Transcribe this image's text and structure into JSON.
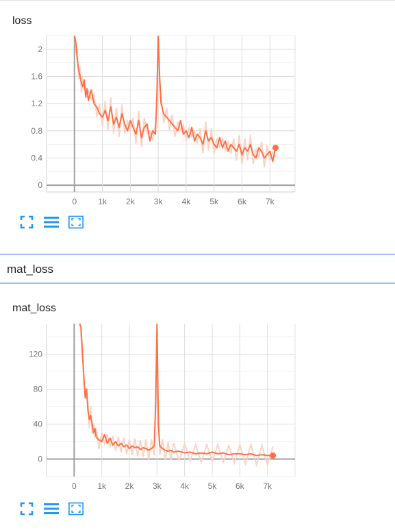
{
  "charts": [
    {
      "title": "loss",
      "x_ticks": [
        "0",
        "1k",
        "2k",
        "3k",
        "4k",
        "5k",
        "6k",
        "7k"
      ],
      "y_ticks": [
        "0",
        "0.4",
        "0.8",
        "1.2",
        "1.6",
        "2"
      ],
      "accent_color": "#ff7043",
      "raw_color": "#fbd3c4",
      "chart_data": {
        "type": "line",
        "title": "loss",
        "xlabel": "",
        "ylabel": "",
        "xlim": [
          -1000,
          7900
        ],
        "ylim": [
          -0.1,
          2.2
        ],
        "grid": true,
        "legend": "none",
        "series": [
          {
            "x": [
              0,
              50,
              100,
              150,
              200,
              250,
              300,
              350,
              400,
              450,
              500,
              600,
              700,
              800,
              900,
              1000,
              1100,
              1200,
              1300,
              1400,
              1500,
              1600,
              1700,
              1800,
              1900,
              2000,
              2100,
              2200,
              2300,
              2400,
              2500,
              2600,
              2700,
              2800,
              2900,
              2950,
              3000,
              3050,
              3100,
              3200,
              3300,
              3400,
              3500,
              3600,
              3700,
              3800,
              3900,
              4000,
              4100,
              4200,
              4300,
              4400,
              4500,
              4600,
              4700,
              4800,
              4900,
              5000,
              5100,
              5200,
              5300,
              5400,
              5500,
              5600,
              5700,
              5800,
              5900,
              6000,
              6100,
              6200,
              6300,
              6400,
              6500,
              6600,
              6700,
              6800,
              6900,
              7000,
              7100,
              7200
            ],
            "y": [
              2.2,
              2.1,
              1.85,
              1.7,
              1.6,
              1.5,
              1.45,
              1.55,
              1.3,
              1.42,
              1.25,
              1.4,
              1.2,
              1.15,
              1.05,
              1.0,
              1.1,
              0.95,
              1.15,
              0.9,
              1.0,
              0.85,
              1.05,
              0.9,
              0.8,
              0.95,
              0.85,
              0.75,
              0.95,
              0.7,
              0.85,
              0.9,
              0.65,
              0.8,
              0.75,
              1.3,
              2.2,
              1.6,
              1.2,
              1.05,
              1.0,
              0.95,
              0.9,
              0.85,
              0.8,
              0.95,
              0.75,
              0.8,
              0.7,
              0.85,
              0.65,
              0.75,
              0.7,
              0.6,
              0.8,
              0.65,
              0.7,
              0.6,
              0.55,
              0.7,
              0.55,
              0.65,
              0.5,
              0.6,
              0.55,
              0.5,
              0.6,
              0.45,
              0.55,
              0.5,
              0.6,
              0.45,
              0.4,
              0.55,
              0.5,
              0.4,
              0.45,
              0.5,
              0.35,
              0.55
            ]
          }
        ]
      }
    },
    {
      "title": "mat_loss",
      "x_ticks": [
        "0",
        "1k",
        "2k",
        "3k",
        "4k",
        "5k",
        "6k",
        "7k"
      ],
      "y_ticks": [
        "0",
        "40",
        "80",
        "120"
      ],
      "accent_color": "#ff7043",
      "raw_color": "#fbd3c4",
      "chart_data": {
        "type": "line",
        "title": "mat_loss",
        "xlabel": "",
        "ylabel": "",
        "xlim": [
          -1000,
          8000
        ],
        "ylim": [
          -20,
          155
        ],
        "grid": true,
        "legend": "none",
        "series": [
          {
            "x": [
              200,
              250,
              300,
              350,
              400,
              450,
              500,
              550,
              600,
              650,
              700,
              750,
              800,
              900,
              1000,
              1100,
              1200,
              1300,
              1400,
              1500,
              1600,
              1700,
              1800,
              1900,
              2000,
              2100,
              2200,
              2300,
              2400,
              2500,
              2600,
              2700,
              2800,
              2900,
              2950,
              3000,
              3050,
              3100,
              3200,
              3300,
              3400,
              3500,
              3600,
              3800,
              4000,
              4200,
              4400,
              4600,
              4800,
              5000,
              5200,
              5400,
              5600,
              5800,
              6000,
              6200,
              6400,
              6600,
              6800,
              7000,
              7200
            ],
            "y": [
              155,
              150,
              120,
              95,
              70,
              80,
              55,
              45,
              50,
              40,
              30,
              35,
              25,
              22,
              20,
              28,
              18,
              24,
              16,
              20,
              15,
              18,
              14,
              16,
              12,
              15,
              13,
              14,
              11,
              13,
              12,
              10,
              12,
              15,
              60,
              155,
              40,
              15,
              12,
              10,
              9,
              10,
              8,
              9,
              7,
              8,
              6,
              7,
              6,
              8,
              6,
              7,
              5,
              6,
              6,
              5,
              6,
              4,
              5,
              4,
              4
            ]
          }
        ]
      }
    }
  ],
  "section": {
    "title": "mat_loss"
  }
}
